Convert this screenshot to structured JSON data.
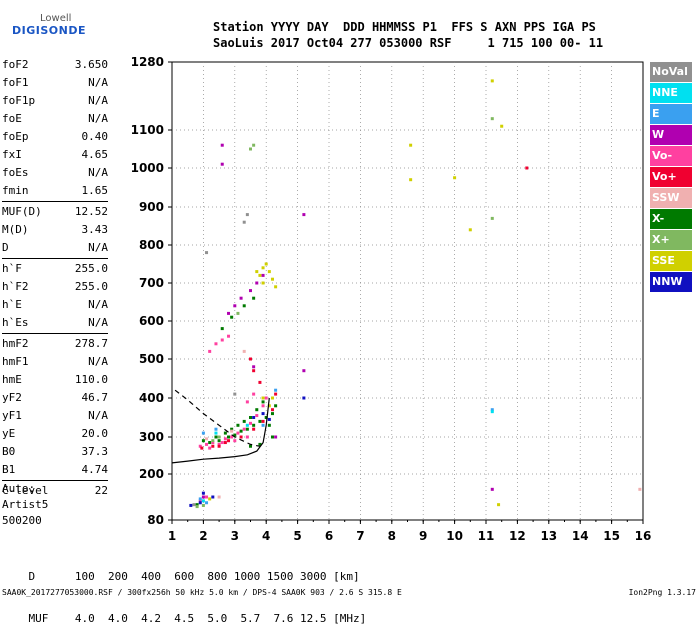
{
  "logo": {
    "line1": "Lowell",
    "line2": "DIGISONDE"
  },
  "header": {
    "line1": "Station YYYY DAY  DDD HHMMSS P1  FFS S AXN PPS IGA PS",
    "line2": "SaoLuis 2017 Oct04 277 053000 RSF     1 715 100 00- 11"
  },
  "params": [
    {
      "group": [
        {
          "name": "foF2",
          "value": "3.650"
        },
        {
          "name": "foF1",
          "value": "N/A"
        },
        {
          "name": "foF1p",
          "value": "N/A"
        },
        {
          "name": "foE",
          "value": "N/A"
        },
        {
          "name": "foEp",
          "value": "0.40"
        },
        {
          "name": "fxI",
          "value": "4.65"
        },
        {
          "name": "foEs",
          "value": "N/A"
        },
        {
          "name": "fmin",
          "value": "1.65"
        }
      ]
    },
    {
      "group": [
        {
          "name": "MUF(D)",
          "value": "12.52"
        },
        {
          "name": "M(D)",
          "value": "3.43"
        },
        {
          "name": "D",
          "value": "N/A"
        }
      ]
    },
    {
      "group": [
        {
          "name": "h`F",
          "value": "255.0"
        },
        {
          "name": "h`F2",
          "value": "255.0"
        },
        {
          "name": "h`E",
          "value": "N/A"
        },
        {
          "name": "h`Es",
          "value": "N/A"
        }
      ]
    },
    {
      "group": [
        {
          "name": "hmF2",
          "value": "278.7"
        },
        {
          "name": "hmF1",
          "value": "N/A"
        },
        {
          "name": "hmE",
          "value": "110.0"
        },
        {
          "name": "yF2",
          "value": "46.7"
        },
        {
          "name": "yF1",
          "value": "N/A"
        },
        {
          "name": "yE",
          "value": "20.0"
        },
        {
          "name": "B0",
          "value": "37.3"
        },
        {
          "name": "B1",
          "value": "4.74"
        }
      ]
    },
    {
      "group": [
        {
          "name": "C-level",
          "value": "22"
        }
      ]
    }
  ],
  "auto": {
    "line1": "Auto:",
    "line2": "Artist5",
    "line3": "500200"
  },
  "distance_table": {
    "d_label": "D",
    "d_values": "100  200  400  600  800 1000 1500 3000 [km]",
    "muf_label": "MUF",
    "muf_values": "4.0  4.0  4.2  4.5  5.0  5.7  7.6 12.5 [MHz]"
  },
  "footer": "SAA0K_2017277053000.RSF / 300fx256h 50 kHz 5.0 km / DPS-4 SAA0K 903 / 2.6 S 315.8 E",
  "version": "Ion2Png 1.3.17",
  "legend": [
    {
      "label": "NoVal",
      "color": "#909090"
    },
    {
      "label": "NNE",
      "color": "#00e0f0"
    },
    {
      "label": "E",
      "color": "#3aa0f0"
    },
    {
      "label": "W",
      "color": "#b000b0"
    },
    {
      "label": "Vo-",
      "color": "#ff40a0"
    },
    {
      "label": "Vo+",
      "color": "#f00030"
    },
    {
      "label": "SSW",
      "color": "#f0b0b0"
    },
    {
      "label": "X-",
      "color": "#007a00"
    },
    {
      "label": "X+",
      "color": "#80b860"
    },
    {
      "label": "SSE",
      "color": "#d0d000"
    },
    {
      "label": "NNW",
      "color": "#1010c0"
    }
  ],
  "chart_data": {
    "type": "scatter",
    "x_ticks": [
      "1",
      "2",
      "3",
      "4",
      "5",
      "6",
      "7",
      "8",
      "9",
      "10",
      "11",
      "12",
      "13",
      "14",
      "15",
      "16"
    ],
    "y_ticks": [
      "80",
      "200",
      "300",
      "400",
      "500",
      "600",
      "700",
      "800",
      "900",
      "1000",
      "1100",
      "1280"
    ],
    "xlim": [
      1,
      16
    ],
    "ylim": [
      80,
      1280
    ],
    "grid": true,
    "legend_placement": "right",
    "series": [
      {
        "color": "#007a00",
        "points": [
          [
            2.0,
            290
          ],
          [
            2.2,
            285
          ],
          [
            2.5,
            290
          ],
          [
            2.8,
            300
          ],
          [
            3.0,
            305
          ],
          [
            3.2,
            315
          ],
          [
            3.4,
            320
          ],
          [
            3.6,
            330
          ],
          [
            3.8,
            340
          ],
          [
            4.0,
            350
          ],
          [
            4.2,
            360
          ],
          [
            4.3,
            380
          ],
          [
            3.9,
            390
          ],
          [
            3.7,
            370
          ],
          [
            3.5,
            350
          ],
          [
            3.3,
            340
          ],
          [
            3.1,
            330
          ],
          [
            2.9,
            320
          ],
          [
            2.7,
            310
          ],
          [
            2.4,
            300
          ],
          [
            2.6,
            580
          ],
          [
            2.9,
            610
          ],
          [
            3.3,
            640
          ],
          [
            3.6,
            660
          ],
          [
            4.1,
            330
          ],
          [
            4.2,
            300
          ],
          [
            3.8,
            280
          ],
          [
            3.5,
            275
          ],
          [
            1.8,
            120
          ]
        ]
      },
      {
        "color": "#ff40a0",
        "points": [
          [
            1.9,
            275
          ],
          [
            2.1,
            280
          ],
          [
            2.3,
            285
          ],
          [
            2.5,
            280
          ],
          [
            2.7,
            295
          ],
          [
            2.9,
            300
          ],
          [
            3.1,
            310
          ],
          [
            3.3,
            320
          ],
          [
            3.5,
            335
          ],
          [
            3.7,
            355
          ],
          [
            3.9,
            380
          ],
          [
            4.0,
            400
          ],
          [
            3.4,
            300
          ],
          [
            3.0,
            290
          ],
          [
            2.6,
            285
          ],
          [
            2.2,
            270
          ],
          [
            2.2,
            520
          ],
          [
            2.4,
            540
          ],
          [
            2.6,
            550
          ],
          [
            2.8,
            560
          ],
          [
            3.4,
            390
          ],
          [
            3.6,
            410
          ],
          [
            1.9,
            130
          ],
          [
            2.1,
            140
          ]
        ]
      },
      {
        "color": "#f00030",
        "points": [
          [
            1.95,
            270
          ],
          [
            2.3,
            275
          ],
          [
            2.7,
            285
          ],
          [
            3.2,
            300
          ],
          [
            3.6,
            320
          ],
          [
            3.9,
            340
          ],
          [
            4.2,
            370
          ],
          [
            4.3,
            410
          ],
          [
            3.8,
            440
          ],
          [
            3.6,
            470
          ],
          [
            3.5,
            500
          ],
          [
            12.3,
            1000
          ],
          [
            2.5,
            275
          ],
          [
            2.8,
            290
          ]
        ]
      },
      {
        "color": "#b000b0",
        "points": [
          [
            2.8,
            620
          ],
          [
            3.0,
            640
          ],
          [
            3.2,
            660
          ],
          [
            3.5,
            680
          ],
          [
            3.7,
            700
          ],
          [
            3.9,
            720
          ],
          [
            2.6,
            1060
          ],
          [
            2.6,
            1010
          ],
          [
            5.2,
            880
          ],
          [
            5.2,
            470
          ],
          [
            11.2,
            160
          ],
          [
            4.3,
            300
          ],
          [
            3.6,
            480
          ],
          [
            2.0,
            140
          ]
        ]
      },
      {
        "color": "#d0d000",
        "points": [
          [
            3.8,
            720
          ],
          [
            3.9,
            740
          ],
          [
            4.0,
            750
          ],
          [
            4.1,
            730
          ],
          [
            4.2,
            710
          ],
          [
            3.9,
            700
          ],
          [
            3.7,
            730
          ],
          [
            4.3,
            690
          ],
          [
            8.6,
            1060
          ],
          [
            8.6,
            970
          ],
          [
            10.0,
            975
          ],
          [
            11.2,
            1230
          ],
          [
            11.5,
            1110
          ],
          [
            10.5,
            840
          ],
          [
            4.2,
            400
          ],
          [
            3.9,
            400
          ],
          [
            4.1,
            380
          ],
          [
            11.4,
            120
          ],
          [
            2.2,
            135
          ]
        ]
      },
      {
        "color": "#80b860",
        "points": [
          [
            11.2,
            1130
          ],
          [
            11.2,
            870
          ],
          [
            3.6,
            1060
          ],
          [
            3.5,
            1050
          ],
          [
            2.5,
            300
          ],
          [
            2.3,
            290
          ],
          [
            3.1,
            620
          ],
          [
            1.8,
            115
          ],
          [
            2.0,
            118
          ]
        ]
      },
      {
        "color": "#3aa0f0",
        "points": [
          [
            2.0,
            310
          ],
          [
            2.4,
            320
          ],
          [
            11.2,
            370
          ],
          [
            3.9,
            330
          ],
          [
            4.3,
            420
          ],
          [
            1.9,
            135
          ],
          [
            2.1,
            125
          ]
        ]
      },
      {
        "color": "#1010c0",
        "points": [
          [
            3.9,
            360
          ],
          [
            3.6,
            350
          ],
          [
            4.1,
            345
          ],
          [
            5.2,
            400
          ],
          [
            2.0,
            150
          ],
          [
            1.9,
            125
          ],
          [
            2.3,
            140
          ],
          [
            1.6,
            118
          ]
        ]
      },
      {
        "color": "#00e0f0",
        "points": [
          [
            2.4,
            310
          ],
          [
            3.4,
            330
          ],
          [
            11.2,
            365
          ],
          [
            2.0,
            130
          ]
        ]
      },
      {
        "color": "#f0b0b0",
        "points": [
          [
            2.1,
            295
          ],
          [
            2.9,
            315
          ],
          [
            3.3,
            520
          ],
          [
            15.9,
            160
          ],
          [
            2.5,
            140
          ]
        ]
      },
      {
        "color": "#909090",
        "points": [
          [
            3.4,
            880
          ],
          [
            3.3,
            860
          ],
          [
            2.1,
            780
          ],
          [
            3.0,
            410
          ],
          [
            1.7,
            120
          ]
        ]
      }
    ],
    "curves": [
      {
        "style": "solid",
        "points": [
          [
            1.0,
            230
          ],
          [
            1.5,
            235
          ],
          [
            2.0,
            240
          ],
          [
            2.5,
            243
          ],
          [
            3.0,
            247
          ],
          [
            3.4,
            252
          ],
          [
            3.7,
            262
          ],
          [
            3.9,
            285
          ],
          [
            4.0,
            330
          ],
          [
            4.1,
            400
          ]
        ]
      },
      {
        "style": "dashed",
        "points": [
          [
            1.1,
            420
          ],
          [
            1.5,
            395
          ],
          [
            2.0,
            360
          ],
          [
            2.5,
            330
          ],
          [
            3.0,
            300
          ],
          [
            3.5,
            280
          ],
          [
            3.8,
            275
          ]
        ]
      }
    ]
  }
}
